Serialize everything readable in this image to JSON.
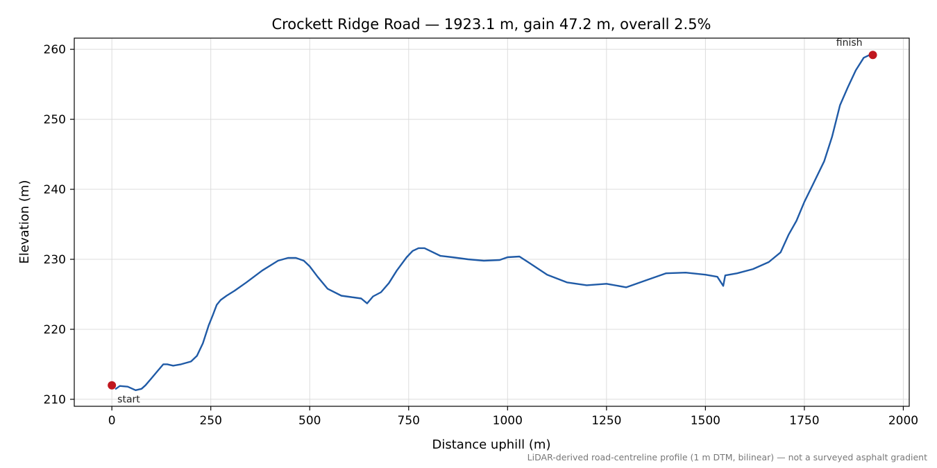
{
  "chart_data": {
    "type": "line",
    "title": "Crockett Ridge Road — 1923.1 m, gain 47.2 m, overall 2.5%",
    "xlabel": "Distance uphill (m)",
    "ylabel": "Elevation (m)",
    "xlim": [
      -95,
      2015
    ],
    "ylim": [
      209,
      261.6
    ],
    "xticks": [
      0,
      250,
      500,
      750,
      1000,
      1250,
      1500,
      1750,
      2000
    ],
    "yticks": [
      210,
      220,
      230,
      240,
      250,
      260
    ],
    "grid": true,
    "line_color": "#1f5aa6",
    "marker_color": "#c0171f",
    "series": [
      {
        "x": [
          10,
          20,
          40,
          60,
          75,
          85,
          100,
          115,
          130,
          140,
          155,
          175,
          200,
          215,
          230,
          245,
          255,
          265,
          275,
          290,
          310,
          340,
          380,
          420,
          445,
          465,
          485,
          500,
          520,
          545,
          580,
          605,
          630,
          645,
          660,
          680,
          700,
          720,
          745,
          760,
          775,
          790,
          830,
          860,
          900,
          940,
          980,
          1000,
          1030,
          1060,
          1100,
          1150,
          1200,
          1250,
          1300,
          1350,
          1400,
          1450,
          1500,
          1530,
          1545,
          1550,
          1580,
          1620,
          1660,
          1690,
          1710,
          1730,
          1750,
          1770,
          1800,
          1820,
          1840,
          1860,
          1880,
          1900,
          1915
        ],
        "y": [
          211.5,
          211.9,
          211.8,
          211.3,
          211.5,
          212.0,
          213.0,
          214.0,
          215.0,
          215.0,
          214.8,
          215.0,
          215.4,
          216.2,
          218.0,
          220.6,
          222.0,
          223.5,
          224.2,
          224.8,
          225.5,
          226.7,
          228.4,
          229.8,
          230.2,
          230.2,
          229.8,
          229.0,
          227.5,
          225.8,
          224.8,
          224.6,
          224.4,
          223.7,
          224.7,
          225.3,
          226.6,
          228.4,
          230.3,
          231.2,
          231.6,
          231.6,
          230.5,
          230.3,
          230.0,
          229.8,
          229.9,
          230.3,
          230.4,
          229.3,
          227.8,
          226.7,
          226.3,
          226.5,
          226.0,
          227.0,
          228.0,
          228.1,
          227.8,
          227.5,
          226.2,
          227.7,
          228.0,
          228.6,
          229.6,
          231.0,
          233.5,
          235.5,
          238.2,
          240.5,
          244.0,
          247.5,
          252.0,
          254.6,
          257.0,
          258.8,
          259.2
        ]
      }
    ],
    "annotations": [
      {
        "x": 0,
        "y": 212.0,
        "label": "start"
      },
      {
        "x": 1923,
        "y": 259.2,
        "label": "finish"
      }
    ],
    "footnote": "LiDAR-derived road-centreline profile (1 m DTM, bilinear) — not a surveyed asphalt gradient"
  }
}
